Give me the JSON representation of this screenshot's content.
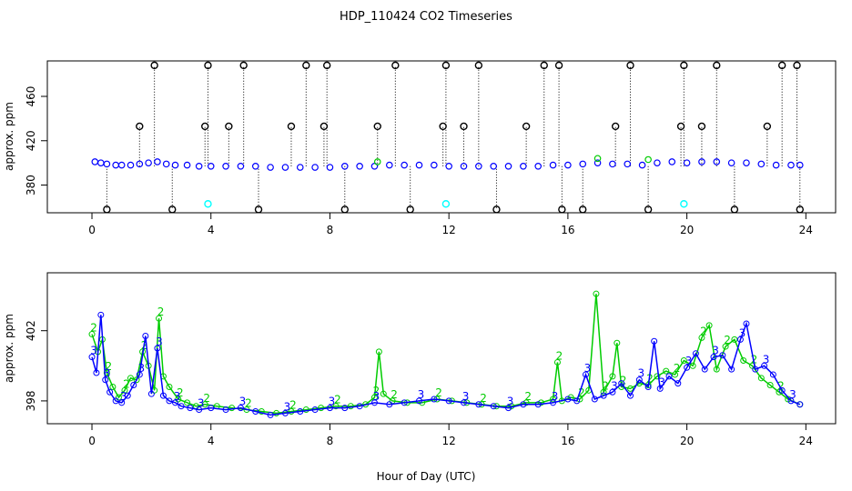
{
  "title": "HDP_110424  CO2 Timeseries",
  "chart_data": [
    {
      "type": "scatter",
      "panel": "top",
      "xlabel": "",
      "ylabel": "approx. ppm",
      "xlim": [
        -1.5,
        25
      ],
      "ylim": [
        355,
        492
      ],
      "xticks": [
        0,
        4,
        8,
        12,
        16,
        20,
        24
      ],
      "xtick_labels": [
        "0",
        "4",
        "8",
        "12",
        "16",
        "20",
        "24"
      ],
      "yticks": [
        380,
        420,
        460
      ],
      "ytick_labels": [
        "380",
        "420",
        "460"
      ],
      "grid": false,
      "legend": "none",
      "series": [
        {
          "color": "#0000ff",
          "marker": "circle",
          "x": [
            0.1,
            0.3,
            0.5,
            0.8,
            1.0,
            1.3,
            1.6,
            1.9,
            2.2,
            2.5,
            2.8,
            3.2,
            3.6,
            4.0,
            4.5,
            5.0,
            5.5,
            6.0,
            6.5,
            7.0,
            7.5,
            8.0,
            8.5,
            9.0,
            9.5,
            10.0,
            10.5,
            11.0,
            11.5,
            12.0,
            12.5,
            13.0,
            13.5,
            14.0,
            14.5,
            15.0,
            15.5,
            16.0,
            16.5,
            17.0,
            17.5,
            18.0,
            18.5,
            19.0,
            19.5,
            20.0,
            20.5,
            21.0,
            21.5,
            22.0,
            22.5,
            23.0,
            23.5,
            23.8
          ],
          "y": [
            401,
            400,
            399,
            398,
            398,
            398,
            399,
            400,
            401,
            399,
            398,
            398,
            397,
            397,
            397,
            397,
            397,
            396,
            396,
            396,
            396,
            396,
            397,
            397,
            397,
            398,
            398,
            398,
            398,
            397,
            397,
            397,
            397,
            397,
            397,
            397,
            398,
            398,
            399,
            400,
            399,
            399,
            398,
            400,
            401,
            400,
            401,
            401,
            400,
            400,
            399,
            398,
            398,
            398
          ]
        }
      ],
      "spikes": {
        "color": "#000000",
        "x": [
          0.5,
          1.6,
          2.1,
          2.7,
          3.8,
          3.9,
          4.6,
          5.1,
          5.6,
          6.7,
          7.2,
          7.8,
          7.9,
          8.5,
          9.6,
          10.2,
          10.7,
          11.8,
          11.9,
          12.5,
          13.0,
          13.6,
          14.6,
          15.2,
          15.7,
          15.8,
          16.5,
          17.6,
          18.1,
          18.7,
          19.8,
          19.9,
          20.5,
          21.0,
          21.6,
          22.7,
          23.2,
          23.7,
          23.8
        ],
        "y": [
          358,
          433,
          488,
          358,
          433,
          488,
          433,
          488,
          358,
          433,
          488,
          433,
          488,
          358,
          433,
          488,
          358,
          433,
          488,
          433,
          488,
          358,
          433,
          488,
          488,
          358,
          358,
          433,
          488,
          358,
          433,
          488,
          433,
          488,
          358,
          433,
          488,
          488,
          358
        ]
      },
      "cyan_points": {
        "color": "#00ffff",
        "x": [
          3.9,
          11.9,
          19.9
        ],
        "y": [
          363,
          363,
          363
        ]
      },
      "green_points": {
        "color": "#00cc00",
        "x": [
          9.6,
          17.0,
          18.7
        ],
        "y": [
          401,
          404,
          403
        ]
      }
    },
    {
      "type": "line",
      "panel": "bottom",
      "xlabel": "Hour of Day (UTC)",
      "ylabel": "approx. ppm",
      "xlim": [
        -1.5,
        25
      ],
      "ylim": [
        396.7,
        405.3
      ],
      "xticks": [
        0,
        4,
        8,
        12,
        16,
        20,
        24
      ],
      "xtick_labels": [
        "0",
        "4",
        "8",
        "12",
        "16",
        "20",
        "24"
      ],
      "yticks": [
        398,
        402
      ],
      "ytick_labels": [
        "398",
        "402"
      ],
      "grid": false,
      "legend": "none",
      "series": [
        {
          "color": "#0000ff",
          "marker_label": "3",
          "x": [
            0.0,
            0.15,
            0.3,
            0.45,
            0.6,
            0.8,
            1.0,
            1.2,
            1.4,
            1.6,
            1.8,
            2.0,
            2.2,
            2.4,
            2.6,
            2.8,
            3.0,
            3.3,
            3.6,
            4.0,
            4.5,
            5.0,
            5.5,
            6.0,
            6.5,
            7.0,
            7.5,
            8.0,
            8.5,
            9.0,
            9.5,
            10.0,
            10.5,
            11.0,
            11.5,
            12.0,
            12.5,
            13.0,
            13.5,
            14.0,
            14.5,
            15.0,
            15.5,
            16.0,
            16.3,
            16.6,
            16.9,
            17.2,
            17.5,
            17.8,
            18.1,
            18.4,
            18.7,
            18.9,
            19.1,
            19.4,
            19.7,
            20.0,
            20.3,
            20.6,
            20.9,
            21.2,
            21.5,
            21.8,
            22.0,
            22.3,
            22.6,
            22.9,
            23.2,
            23.5,
            23.8
          ],
          "y": [
            400.5,
            399.6,
            402.9,
            399.2,
            398.5,
            398.0,
            397.9,
            398.3,
            398.9,
            399.5,
            401.7,
            398.4,
            401.0,
            398.3,
            398.0,
            397.9,
            397.7,
            397.6,
            397.5,
            397.6,
            397.5,
            397.6,
            397.4,
            397.2,
            397.3,
            397.4,
            397.5,
            397.6,
            397.6,
            397.7,
            397.9,
            397.8,
            397.9,
            398.0,
            398.1,
            398.0,
            397.9,
            397.8,
            397.7,
            397.6,
            397.8,
            397.8,
            397.9,
            398.1,
            398.0,
            399.5,
            398.1,
            398.3,
            398.5,
            399.0,
            398.3,
            399.2,
            398.8,
            401.4,
            398.7,
            399.4,
            399.0,
            399.9,
            400.7,
            399.8,
            400.5,
            400.6,
            399.8,
            401.5,
            402.4,
            399.8,
            400.0,
            399.5,
            398.6,
            398.0,
            397.8
          ]
        },
        {
          "color": "#00cc00",
          "marker_label": "2",
          "x": [
            0.0,
            0.2,
            0.35,
            0.5,
            0.7,
            0.9,
            1.1,
            1.3,
            1.5,
            1.7,
            1.9,
            2.1,
            2.25,
            2.4,
            2.6,
            2.9,
            3.2,
            3.5,
            3.8,
            4.2,
            4.7,
            5.2,
            5.7,
            6.2,
            6.7,
            7.2,
            7.7,
            8.2,
            8.7,
            9.2,
            9.5,
            9.65,
            9.8,
            10.1,
            10.6,
            11.1,
            11.6,
            12.1,
            12.6,
            13.1,
            13.6,
            14.1,
            14.6,
            15.1,
            15.5,
            15.65,
            15.8,
            16.1,
            16.4,
            16.7,
            16.95,
            17.2,
            17.5,
            17.65,
            17.8,
            18.1,
            18.4,
            18.7,
            19.0,
            19.3,
            19.6,
            19.9,
            20.2,
            20.5,
            20.75,
            21.0,
            21.3,
            21.6,
            21.9,
            22.2,
            22.5,
            22.8,
            23.1,
            23.4,
            23.8
          ],
          "y": [
            401.8,
            400.8,
            401.5,
            399.6,
            398.8,
            398.2,
            398.6,
            399.3,
            399.2,
            400.8,
            400.0,
            398.6,
            402.7,
            399.4,
            398.8,
            398.1,
            397.9,
            397.7,
            397.8,
            397.7,
            397.6,
            397.5,
            397.4,
            397.3,
            397.4,
            397.5,
            397.6,
            397.7,
            397.7,
            397.8,
            398.2,
            400.8,
            398.4,
            398.0,
            397.9,
            397.9,
            398.1,
            398.0,
            397.9,
            397.8,
            397.7,
            397.7,
            397.9,
            397.9,
            398.1,
            400.2,
            398.0,
            398.2,
            398.1,
            398.6,
            404.1,
            398.5,
            399.4,
            401.3,
            398.8,
            398.7,
            399.0,
            398.9,
            399.4,
            399.7,
            399.5,
            400.3,
            400.0,
            401.6,
            402.3,
            399.8,
            401.1,
            401.5,
            400.3,
            400.0,
            399.3,
            398.9,
            398.5,
            398.1,
            397.8
          ]
        }
      ]
    }
  ]
}
